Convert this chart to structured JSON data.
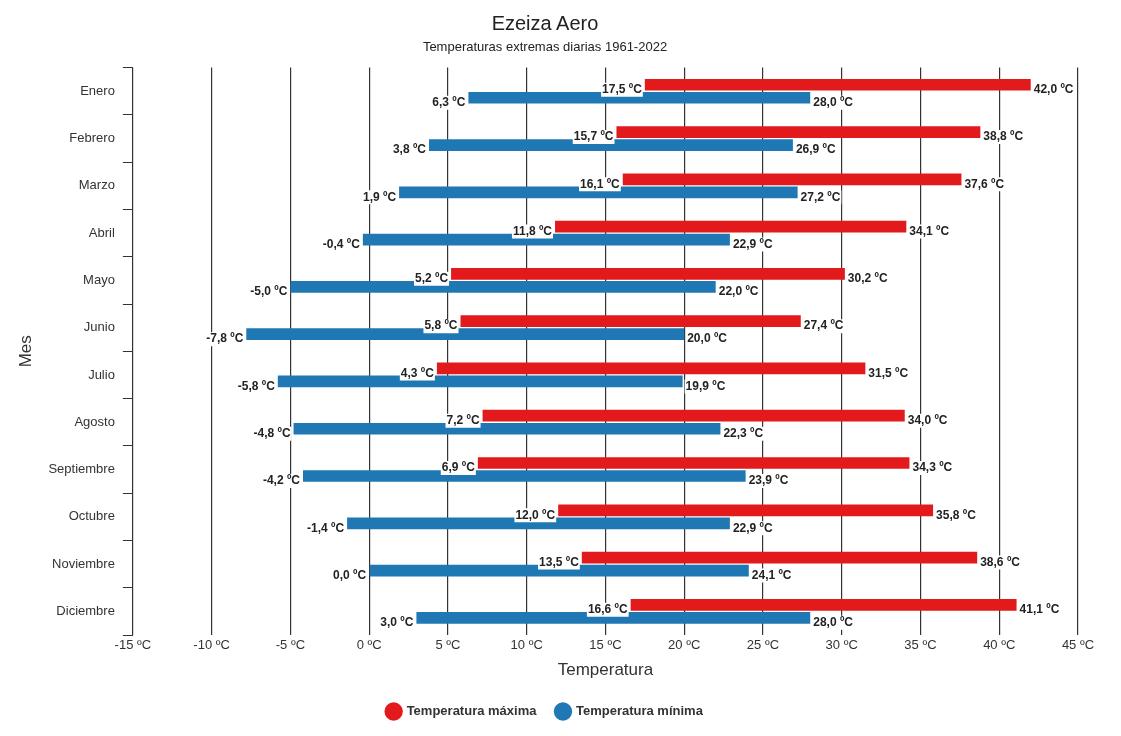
{
  "chart_data": {
    "type": "bar",
    "orientation": "horizontal",
    "title": "Ezeiza Aero",
    "subtitle": "Temperaturas extremas diarias 1961-2022",
    "xlabel": "Temperatura",
    "ylabel": "Mes",
    "categories": [
      "Enero",
      "Febrero",
      "Marzo",
      "Abril",
      "Mayo",
      "Junio",
      "Julio",
      "Agosto",
      "Septiembre",
      "Octubre",
      "Noviembre",
      "Diciembre"
    ],
    "series": [
      {
        "name": "Temperatura máxima",
        "color": "#e31a1c",
        "base": [
          17.5,
          15.7,
          16.1,
          11.8,
          5.2,
          5.8,
          4.3,
          7.2,
          6.9,
          12.0,
          13.5,
          16.6
        ],
        "values": [
          24.5,
          23.1,
          21.5,
          22.3,
          25.0,
          21.6,
          27.2,
          26.8,
          27.4,
          23.8,
          25.1,
          24.5
        ]
      },
      {
        "name": "Temperatura mínima",
        "color": "#1f78b4",
        "base": [
          6.3,
          3.8,
          1.9,
          -0.4,
          -5.0,
          -7.8,
          -5.8,
          -4.8,
          -4.2,
          -1.4,
          0.0,
          3.0
        ],
        "values": [
          21.7,
          23.1,
          25.3,
          23.3,
          27.0,
          27.8,
          25.7,
          27.1,
          28.1,
          24.3,
          24.1,
          25.0
        ]
      }
    ],
    "xlim": [
      -15,
      45
    ],
    "xticks": [
      {
        "value": -15,
        "label": "-15 ºC"
      },
      {
        "value": -10,
        "label": "-10 ºC"
      },
      {
        "value": -5,
        "label": "-5 ºC"
      },
      {
        "value": 0,
        "label": "0 ºC"
      },
      {
        "value": 5,
        "label": "5 ºC"
      },
      {
        "value": 10,
        "label": "10 ºC"
      },
      {
        "value": 15,
        "label": "15 ºC"
      },
      {
        "value": 20,
        "label": "20 ºC"
      },
      {
        "value": 25,
        "label": "25 ºC"
      },
      {
        "value": 30,
        "label": "30 ºC"
      },
      {
        "value": 35,
        "label": "35 ºC"
      },
      {
        "value": 40,
        "label": "40 ºC"
      },
      {
        "value": 45,
        "label": "45 ºC"
      }
    ],
    "grid": "x",
    "legend": "bottom",
    "annotations": [
      {
        "text": "17,5 ºC",
        "x": 17.5,
        "y": "Enero"
      },
      {
        "text": "42,0 ºC",
        "x": 42.0,
        "y": "Enero"
      },
      {
        "text": "6,3 ºC",
        "x": 6.3,
        "y": "Enero"
      },
      {
        "text": "28,0 ºC",
        "x": 28.0,
        "y": "Enero"
      },
      {
        "text": "15,7 ºC",
        "x": 15.7,
        "y": "Febrero"
      },
      {
        "text": "38,8 ºC",
        "x": 38.8,
        "y": "Febrero"
      },
      {
        "text": "3,8 ºC",
        "x": 3.8,
        "y": "Febrero"
      },
      {
        "text": "26,9 ºC",
        "x": 26.9,
        "y": "Febrero"
      },
      {
        "text": "16,1 ºC",
        "x": 16.1,
        "y": "Marzo"
      },
      {
        "text": "37,6 ºC",
        "x": 37.6,
        "y": "Marzo"
      },
      {
        "text": "1,9 ºC",
        "x": 1.9,
        "y": "Marzo"
      },
      {
        "text": "27,2 ºC",
        "x": 27.2,
        "y": "Marzo"
      },
      {
        "text": "11,8 ºC",
        "x": 11.8,
        "y": "Abril"
      },
      {
        "text": "34,1 ºC",
        "x": 34.1,
        "y": "Abril"
      },
      {
        "text": "-0,4 ºC",
        "x": -0.4,
        "y": "Abril"
      },
      {
        "text": "22,9 ºC",
        "x": 22.9,
        "y": "Abril"
      },
      {
        "text": "5,2 ºC",
        "x": 5.2,
        "y": "Mayo"
      },
      {
        "text": "30,2 ºC",
        "x": 30.2,
        "y": "Mayo"
      },
      {
        "text": "-5,0 ºC",
        "x": -5.0,
        "y": "Mayo"
      },
      {
        "text": "22,0 ºC",
        "x": 22.0,
        "y": "Mayo"
      },
      {
        "text": "5,8 ºC",
        "x": 5.8,
        "y": "Junio"
      },
      {
        "text": "27,4 ºC",
        "x": 27.4,
        "y": "Junio"
      },
      {
        "text": "-7,8 ºC",
        "x": -7.8,
        "y": "Junio"
      },
      {
        "text": "20,0 ºC",
        "x": 20.0,
        "y": "Junio"
      },
      {
        "text": "4,3 ºC",
        "x": 4.3,
        "y": "Julio"
      },
      {
        "text": "31,5 ºC",
        "x": 31.5,
        "y": "Julio"
      },
      {
        "text": "-5,8 ºC",
        "x": -5.8,
        "y": "Julio"
      },
      {
        "text": "19,9 ºC",
        "x": 19.9,
        "y": "Julio"
      },
      {
        "text": "7,2 ºC",
        "x": 7.2,
        "y": "Agosto"
      },
      {
        "text": "34,0 ºC",
        "x": 34.0,
        "y": "Agosto"
      },
      {
        "text": "-4,8 ºC",
        "x": -4.8,
        "y": "Agosto"
      },
      {
        "text": "22,3 ºC",
        "x": 22.3,
        "y": "Agosto"
      },
      {
        "text": "6,9 ºC",
        "x": 6.9,
        "y": "Septiembre"
      },
      {
        "text": "34,3 ºC",
        "x": 34.3,
        "y": "Septiembre"
      },
      {
        "text": "-4,2 ºC",
        "x": -4.2,
        "y": "Septiembre"
      },
      {
        "text": "23,9 ºC",
        "x": 23.9,
        "y": "Septiembre"
      },
      {
        "text": "12,0 ºC",
        "x": 12.0,
        "y": "Octubre"
      },
      {
        "text": "35,8 ºC",
        "x": 35.8,
        "y": "Octubre"
      },
      {
        "text": "-1,4 ºC",
        "x": -1.4,
        "y": "Octubre"
      },
      {
        "text": "22,9 ºC",
        "x": 22.9,
        "y": "Octubre"
      },
      {
        "text": "13,5 ºC",
        "x": 13.5,
        "y": "Noviembre"
      },
      {
        "text": "38,6 ºC",
        "x": 38.6,
        "y": "Noviembre"
      },
      {
        "text": "0,0 ºC",
        "x": 0.0,
        "y": "Noviembre"
      },
      {
        "text": "24,1 ºC",
        "x": 24.1,
        "y": "Noviembre"
      },
      {
        "text": "16,6 ºC",
        "x": 16.6,
        "y": "Diciembre"
      },
      {
        "text": "41,1 ºC",
        "x": 41.1,
        "y": "Diciembre"
      },
      {
        "text": "3,0 ºC",
        "x": 3.0,
        "y": "Diciembre"
      },
      {
        "text": "28,0 ºC",
        "x": 28.0,
        "y": "Diciembre"
      }
    ]
  }
}
